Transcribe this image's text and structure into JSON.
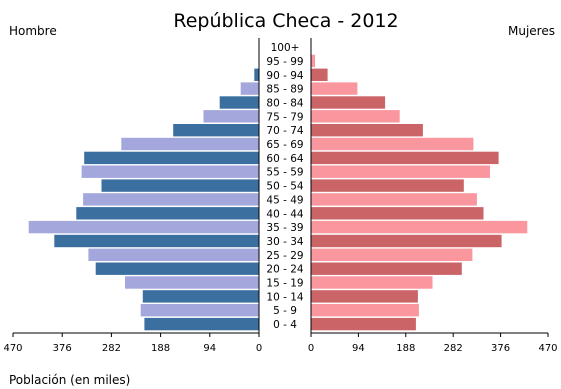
{
  "chart_data": {
    "type": "bar",
    "title": "República Checa - 2012",
    "left_label": "Hombre",
    "right_label": "Mujeres",
    "xlabel": "Población (en miles)",
    "xlim": [
      0,
      470
    ],
    "x_ticks": [
      470,
      376,
      282,
      188,
      94,
      0
    ],
    "x_ticks_right": [
      0,
      94,
      188,
      282,
      376,
      470
    ],
    "categories": [
      "0 - 4",
      "5 - 9",
      "10 - 14",
      "15 - 19",
      "20 - 24",
      "25 - 29",
      "30 - 34",
      "35 - 39",
      "40 - 44",
      "45 - 49",
      "50 - 54",
      "55 - 59",
      "60 - 64",
      "65 - 69",
      "70 - 74",
      "75 - 79",
      "80 - 84",
      "85 - 89",
      "90 - 94",
      "95 - 99",
      "100+"
    ],
    "series": [
      {
        "name": "Hombre",
        "values": [
          219,
          226,
          222,
          256,
          312,
          326,
          391,
          440,
          349,
          336,
          301,
          339,
          334,
          263,
          164,
          106,
          75,
          35,
          9,
          1,
          0
        ]
      },
      {
        "name": "Mujeres",
        "values": [
          208,
          214,
          212,
          241,
          299,
          320,
          378,
          429,
          342,
          329,
          303,
          355,
          372,
          322,
          222,
          176,
          147,
          92,
          33,
          8,
          1
        ]
      }
    ],
    "colors": {
      "male_dark": "#3a6fa0",
      "male_light": "#a3a7dc",
      "female_dark": "#cb6467",
      "female_light": "#fa979e",
      "axis": "#000000"
    },
    "grid": false
  }
}
